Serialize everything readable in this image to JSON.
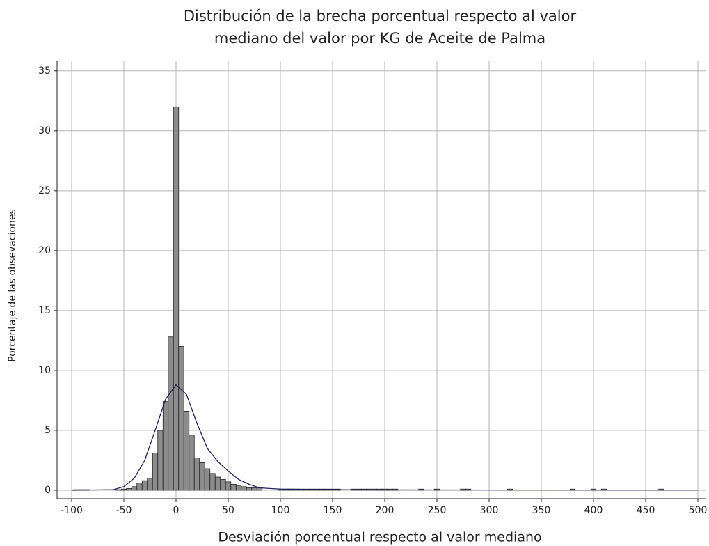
{
  "chart_data": {
    "type": "histogram",
    "title": [
      "Distribución de la brecha porcentual respecto al valor",
      "mediano del valor por KG de Aceite de Palma"
    ],
    "xlabel": "Desviación porcentual respecto al valor mediano",
    "ylabel": "Porcentaje de las obsevaciones",
    "color": "#8c8c8c",
    "edgecolor": "#222222",
    "grid": true,
    "bins": [
      -97.5,
      -92.5,
      -87.5,
      -82.5,
      -77.5,
      -72.5,
      -67.5,
      -62.5,
      -57.5,
      -52.5,
      -47.5,
      -42.5,
      -37.5,
      -32.5,
      -27.5,
      -22.5,
      -17.5,
      -12.5,
      -7.5,
      -2.5,
      2.5,
      7.5,
      12.5,
      17.5,
      22.5,
      27.5,
      32.5,
      37.5,
      42.5,
      47.5,
      52.5,
      57.5,
      62.5,
      67.5,
      72.5,
      77.5,
      82.5,
      87.5,
      92.5,
      97.5,
      102.5,
      107.5,
      112.5,
      117.5,
      122.5,
      127.5,
      132.5,
      137.5,
      142.5,
      147.5,
      152.5,
      157.5,
      162.5,
      167.5,
      172.5,
      177.5,
      182.5,
      187.5,
      192.5,
      197.5,
      202.5,
      207.5,
      212.5,
      217.5,
      222.5,
      227.5,
      232.5,
      237.5,
      242.5,
      247.5,
      252.5,
      257.5,
      262.5,
      267.5,
      272.5,
      277.5,
      282.5,
      287.5,
      292.5,
      297.5,
      302.5,
      307.5,
      312.5,
      317.5,
      322.5,
      327.5,
      332.5,
      337.5,
      342.5,
      347.5,
      352.5,
      357.5,
      362.5,
      367.5,
      372.5,
      377.5,
      382.5,
      387.5,
      392.5,
      397.5,
      402.5,
      407.5,
      412.5,
      417.5,
      422.5,
      427.5,
      432.5,
      437.5,
      442.5,
      447.5,
      452.5,
      457.5,
      462.5,
      467.5,
      472.5
    ],
    "values": [
      0.05,
      0.05,
      0.05,
      0,
      0,
      0,
      0,
      0,
      0.05,
      0.1,
      0.15,
      0.3,
      0.6,
      0.8,
      1.0,
      3.1,
      5.0,
      7.4,
      12.8,
      32,
      12.0,
      6.6,
      4.6,
      2.7,
      2.3,
      1.8,
      1.4,
      1.1,
      0.9,
      0.7,
      0.5,
      0.4,
      0.3,
      0.2,
      0.2,
      0.2,
      0,
      0,
      0,
      0.1,
      0.1,
      0.1,
      0.1,
      0.1,
      0.1,
      0.1,
      0.1,
      0.1,
      0.1,
      0.1,
      0.1,
      0,
      0,
      0.1,
      0.1,
      0.1,
      0.1,
      0.1,
      0.1,
      0.1,
      0.1,
      0.1,
      0,
      0,
      0,
      0,
      0.1,
      0,
      0,
      0.1,
      0,
      0,
      0,
      0,
      0.1,
      0.1,
      0,
      0,
      0,
      0,
      0,
      0,
      0,
      0.1,
      0,
      0,
      0,
      0,
      0,
      0,
      0,
      0,
      0,
      0,
      0,
      0.1,
      0,
      0,
      0,
      0.1,
      0,
      0.1,
      0,
      0,
      0,
      0,
      0,
      0,
      0,
      0,
      0,
      0,
      0.1,
      0
    ],
    "density": {
      "color": "#1f1f5c",
      "x": [
        -100,
        -60,
        -50,
        -40,
        -30,
        -20,
        -10,
        0,
        10,
        20,
        30,
        40,
        50,
        60,
        70,
        80,
        100,
        150,
        200,
        300,
        500
      ],
      "y": [
        0,
        0.05,
        0.3,
        1.0,
        2.5,
        5.0,
        7.6,
        8.8,
        8.0,
        5.6,
        3.5,
        2.4,
        1.6,
        0.9,
        0.5,
        0.2,
        0.1,
        0.05,
        0.03,
        0.02,
        0.01
      ]
    },
    "xlim": [
      -114,
      508
    ],
    "ylim": [
      -0.7,
      35.8
    ],
    "xticks": [
      -100,
      -50,
      0,
      50,
      100,
      150,
      200,
      250,
      300,
      350,
      400,
      450,
      500
    ],
    "yticks": [
      0,
      5,
      10,
      15,
      20,
      25,
      30,
      35
    ]
  }
}
